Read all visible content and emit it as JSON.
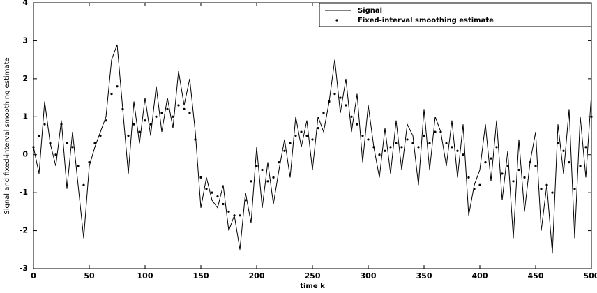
{
  "chart_data": {
    "type": "line",
    "xlabel": "time k",
    "ylabel": "Signal and fixed-interval smoothing estimate",
    "x": [
      0,
      5,
      10,
      15,
      20,
      25,
      30,
      35,
      40,
      45,
      50,
      55,
      60,
      65,
      70,
      75,
      80,
      85,
      90,
      95,
      100,
      105,
      110,
      115,
      120,
      125,
      130,
      135,
      140,
      145,
      150,
      155,
      160,
      165,
      170,
      175,
      180,
      185,
      190,
      195,
      200,
      205,
      210,
      215,
      220,
      225,
      230,
      235,
      240,
      245,
      250,
      255,
      260,
      265,
      270,
      275,
      280,
      285,
      290,
      295,
      300,
      305,
      310,
      315,
      320,
      325,
      330,
      335,
      340,
      345,
      350,
      355,
      360,
      365,
      370,
      375,
      380,
      385,
      390,
      395,
      400,
      405,
      410,
      415,
      420,
      425,
      430,
      435,
      440,
      445,
      450,
      455,
      460,
      465,
      470,
      475,
      480,
      485,
      490,
      495,
      500
    ],
    "series": [
      {
        "name": "Signal",
        "color": "#000000",
        "style": "line",
        "values": [
          0.2,
          -0.5,
          1.4,
          0.3,
          -0.3,
          0.9,
          -0.9,
          0.6,
          -0.8,
          -2.2,
          -0.3,
          0.2,
          0.6,
          1.0,
          2.5,
          2.9,
          1.2,
          -0.5,
          1.4,
          0.3,
          1.5,
          0.5,
          1.8,
          0.6,
          1.5,
          0.7,
          2.2,
          1.3,
          2.0,
          0.6,
          -1.4,
          -0.6,
          -1.2,
          -1.4,
          -0.8,
          -2.0,
          -1.6,
          -2.5,
          -1.0,
          -1.8,
          0.2,
          -1.4,
          -0.2,
          -1.3,
          -0.4,
          0.4,
          -0.6,
          1.0,
          0.2,
          0.9,
          -0.4,
          1.0,
          0.6,
          1.4,
          2.5,
          1.1,
          2.0,
          0.6,
          1.6,
          -0.2,
          1.3,
          0.2,
          -0.6,
          0.7,
          -0.5,
          0.9,
          -0.4,
          0.8,
          0.5,
          -0.8,
          1.2,
          -0.4,
          1.0,
          0.6,
          -0.3,
          0.9,
          -0.6,
          0.8,
          -1.6,
          -0.8,
          -0.4,
          0.8,
          -0.7,
          0.9,
          -1.2,
          0.1,
          -2.2,
          0.4,
          -1.5,
          -0.2,
          0.6,
          -2.0,
          -0.8,
          -2.6,
          0.8,
          -0.5,
          1.2,
          -2.2,
          1.0,
          -0.6,
          1.6
        ]
      },
      {
        "name": "Fixed-interval smoothing estimate",
        "color": "#000000",
        "style": "dots",
        "values": [
          0.2,
          0.5,
          0.8,
          0.3,
          0.0,
          0.8,
          0.3,
          0.2,
          -0.3,
          -0.8,
          -0.2,
          0.3,
          0.5,
          0.9,
          1.6,
          1.8,
          1.2,
          0.5,
          0.8,
          0.6,
          0.9,
          0.8,
          1.0,
          1.1,
          1.2,
          1.0,
          1.3,
          1.2,
          1.1,
          0.4,
          -0.6,
          -0.9,
          -1.0,
          -1.1,
          -1.3,
          -1.5,
          -1.6,
          -1.6,
          -1.2,
          -0.7,
          -0.3,
          -0.4,
          -0.7,
          -0.6,
          -0.2,
          0.1,
          0.3,
          0.5,
          0.6,
          0.5,
          0.4,
          0.7,
          1.1,
          1.4,
          1.6,
          1.5,
          1.3,
          1.0,
          0.8,
          0.5,
          0.4,
          0.2,
          0.0,
          0.1,
          0.2,
          0.3,
          0.2,
          0.4,
          0.3,
          0.2,
          0.5,
          0.3,
          0.6,
          0.6,
          0.3,
          0.2,
          0.1,
          0.0,
          -0.6,
          -0.9,
          -0.8,
          -0.2,
          -0.1,
          0.2,
          -0.5,
          -0.3,
          -0.7,
          -0.4,
          -0.6,
          -0.2,
          -0.3,
          -0.9,
          -0.8,
          -1.0,
          0.3,
          0.1,
          -0.2,
          -0.9,
          -0.3,
          0.2,
          1.0
        ]
      }
    ],
    "xlim": [
      0,
      500
    ],
    "xticks": [
      0,
      50,
      100,
      150,
      200,
      250,
      300,
      350,
      400,
      450,
      500
    ],
    "ylim": [
      -3,
      4
    ],
    "yticks": [
      -3,
      -2,
      -1,
      0,
      1,
      2,
      3,
      4
    ],
    "legend": "upper right"
  }
}
